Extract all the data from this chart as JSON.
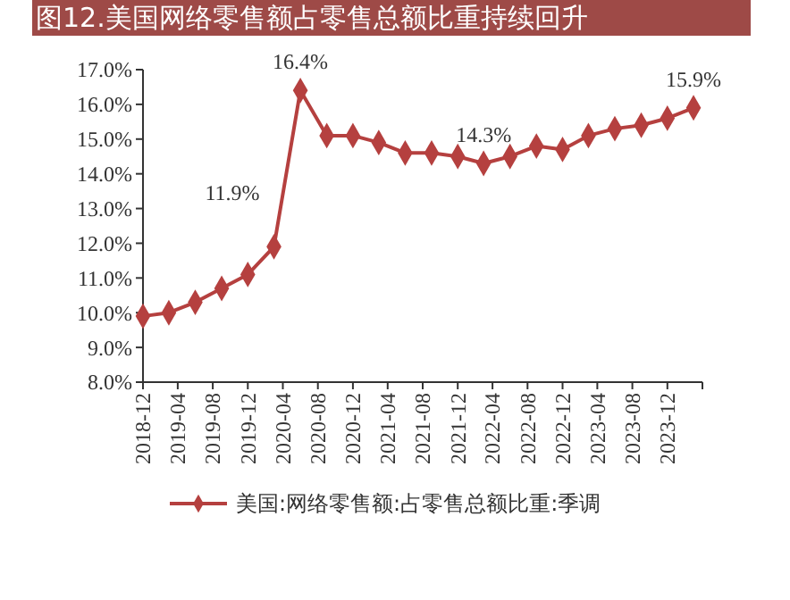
{
  "chart_data": {
    "type": "line",
    "title": "图12.美国网络零售额占零售总额比重持续回升",
    "x": [
      "2018-12",
      "2019-03",
      "2019-06",
      "2019-09",
      "2019-12",
      "2020-03",
      "2020-06",
      "2020-09",
      "2020-12",
      "2021-03",
      "2021-06",
      "2021-09",
      "2021-12",
      "2022-03",
      "2022-06",
      "2022-09",
      "2022-12",
      "2023-03",
      "2023-06",
      "2023-09",
      "2023-12",
      "2024-03"
    ],
    "series": [
      {
        "name": "美国:网络零售额:占零售总额比重:季调",
        "color": "#b5403f",
        "values": [
          9.9,
          10.0,
          10.3,
          10.7,
          11.1,
          11.9,
          16.4,
          15.1,
          15.1,
          14.9,
          14.6,
          14.6,
          14.5,
          14.3,
          14.5,
          14.8,
          14.7,
          15.1,
          15.3,
          15.4,
          15.6,
          15.9
        ],
        "value_labels": [
          null,
          null,
          null,
          null,
          null,
          "11.9%",
          "16.4%",
          null,
          null,
          null,
          null,
          null,
          null,
          "14.3%",
          null,
          null,
          null,
          null,
          null,
          null,
          null,
          "15.9%"
        ]
      }
    ],
    "xlim": [
      "2018-12",
      "2024-04"
    ],
    "xticks": [
      "2018-12",
      "2019-04",
      "2019-08",
      "2019-12",
      "2020-04",
      "2020-08",
      "2020-12",
      "2021-04",
      "2021-08",
      "2021-12",
      "2022-04",
      "2022-08",
      "2022-12",
      "2023-04",
      "2023-08",
      "2023-12"
    ],
    "ylim": [
      8,
      17
    ],
    "yticks": [
      {
        "value": 8,
        "label": "8.0%"
      },
      {
        "value": 9,
        "label": "9.0%"
      },
      {
        "value": 10,
        "label": "10.0%"
      },
      {
        "value": 11,
        "label": "11.0%"
      },
      {
        "value": 12,
        "label": "12.0%"
      },
      {
        "value": 13,
        "label": "13.0%"
      },
      {
        "value": 14,
        "label": "14.0%"
      },
      {
        "value": 15,
        "label": "15.0%"
      },
      {
        "value": 16,
        "label": "16.0%"
      },
      {
        "value": 17,
        "label": "17.0%"
      }
    ],
    "grid": false,
    "legend": "bottom",
    "marker": "diamond",
    "line_style": "solid"
  }
}
